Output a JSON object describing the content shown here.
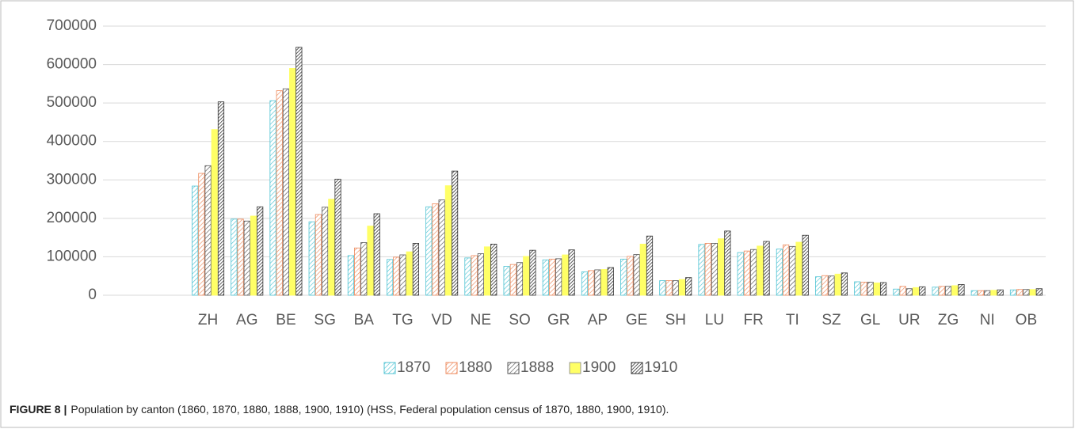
{
  "chart_data": {
    "type": "bar",
    "categories": [
      "ZH",
      "AG",
      "BE",
      "SG",
      "BA",
      "TG",
      "VD",
      "NE",
      "SO",
      "GR",
      "AP",
      "GE",
      "SH",
      "LU",
      "FR",
      "TI",
      "SZ",
      "GL",
      "UR",
      "ZG",
      "NI",
      "OB"
    ],
    "series": [
      {
        "name": "1870",
        "color": "#4fc3d3",
        "hatch": "sparse",
        "values": [
          284000,
          198000,
          506000,
          191000,
          103000,
          93000,
          230000,
          97000,
          75000,
          92000,
          61000,
          94000,
          38000,
          132000,
          111000,
          120000,
          48000,
          35000,
          16000,
          21000,
          12000,
          14000
        ]
      },
      {
        "name": "1880",
        "color": "#ee8a5c",
        "hatch": "sparse",
        "values": [
          317000,
          198000,
          532000,
          210000,
          123000,
          99000,
          238000,
          103000,
          80000,
          94000,
          64000,
          101000,
          38000,
          135000,
          115000,
          131000,
          51000,
          34000,
          23000,
          23000,
          12000,
          15000
        ]
      },
      {
        "name": "1888",
        "color": "#555555",
        "hatch": "sparse",
        "values": [
          337000,
          193000,
          537000,
          229000,
          137000,
          105000,
          248000,
          108000,
          85000,
          95000,
          66000,
          106000,
          38000,
          135000,
          119000,
          127000,
          50000,
          34000,
          17000,
          23000,
          12000,
          15000
        ]
      },
      {
        "name": "1900",
        "color": "#ffff66",
        "hatch": "none",
        "values": [
          431000,
          206000,
          590000,
          250000,
          180000,
          113000,
          285000,
          126000,
          101000,
          105000,
          67000,
          133000,
          41000,
          147000,
          128000,
          138000,
          55000,
          32000,
          20000,
          25000,
          13000,
          15000
        ]
      },
      {
        "name": "1910",
        "color": "#333333",
        "hatch": "dense",
        "values": [
          503000,
          230000,
          645000,
          302000,
          212000,
          135000,
          323000,
          133000,
          117000,
          118000,
          72000,
          154000,
          46000,
          167000,
          140000,
          156000,
          58000,
          33000,
          22000,
          28000,
          14000,
          17000
        ]
      }
    ],
    "ylim": [
      0,
      700000
    ],
    "yticks": [
      0,
      100000,
      200000,
      300000,
      400000,
      500000,
      600000,
      700000
    ],
    "grid": true,
    "legend": "bottom"
  },
  "caption": {
    "label": "FIGURE 8 |",
    "text": "Population by canton (1860, 1870, 1880, 1888, 1900, 1910) (HSS, Federal population census of 1870, 1880, 1900, 1910)."
  }
}
